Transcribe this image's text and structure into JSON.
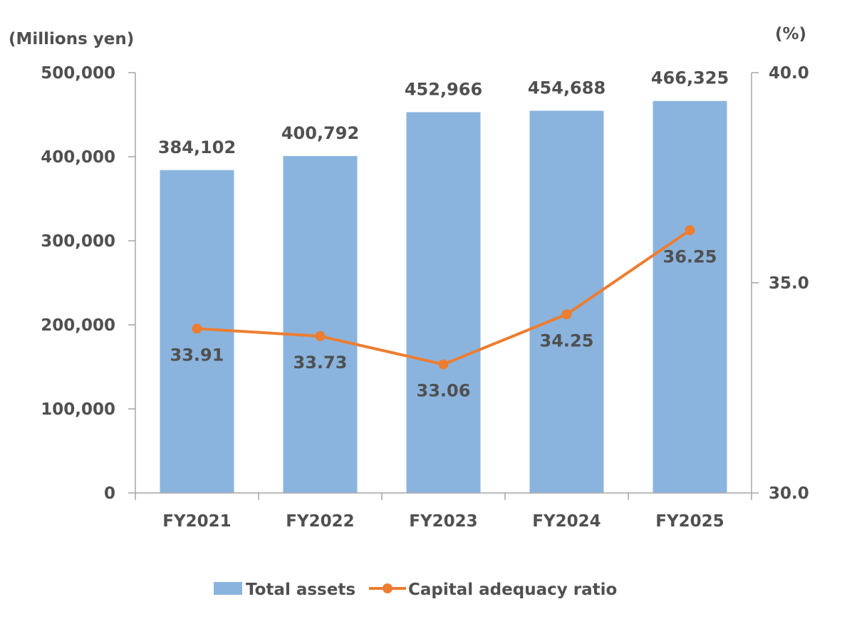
{
  "chart_data": {
    "type": "bar+line",
    "categories": [
      "FY2021",
      "FY2022",
      "FY2023",
      "FY2024",
      "FY2025"
    ],
    "series": [
      {
        "name": "Total assets",
        "type": "bar",
        "axis": "left",
        "color": "#8AB4DE",
        "values": [
          384102,
          400792,
          452966,
          454688,
          466325
        ],
        "labels": [
          "384,102",
          "400,792",
          "452,966",
          "454,688",
          "466,325"
        ]
      },
      {
        "name": "Capital adequacy ratio",
        "type": "line",
        "axis": "right",
        "color": "#ED7D31",
        "values": [
          33.91,
          33.73,
          33.06,
          34.25,
          36.25
        ],
        "labels": [
          "33.91",
          "33.73",
          "33.06",
          "34.25",
          "36.25"
        ]
      }
    ],
    "left_axis": {
      "label": "(Millions yen)",
      "range": [
        0,
        500000
      ],
      "ticks": [
        0,
        100000,
        200000,
        300000,
        400000,
        500000
      ],
      "tick_labels": [
        "0",
        "100,000",
        "200,000",
        "300,000",
        "400,000",
        "500,000"
      ]
    },
    "right_axis": {
      "label": "(%)",
      "range": [
        30,
        40
      ],
      "ticks": [
        30,
        35,
        40
      ],
      "tick_labels": [
        "30.0",
        "35.0",
        "40.0"
      ]
    },
    "grid": false,
    "legend": {
      "position": "bottom",
      "entries": [
        "Total assets",
        "Capital adequacy ratio"
      ]
    }
  }
}
